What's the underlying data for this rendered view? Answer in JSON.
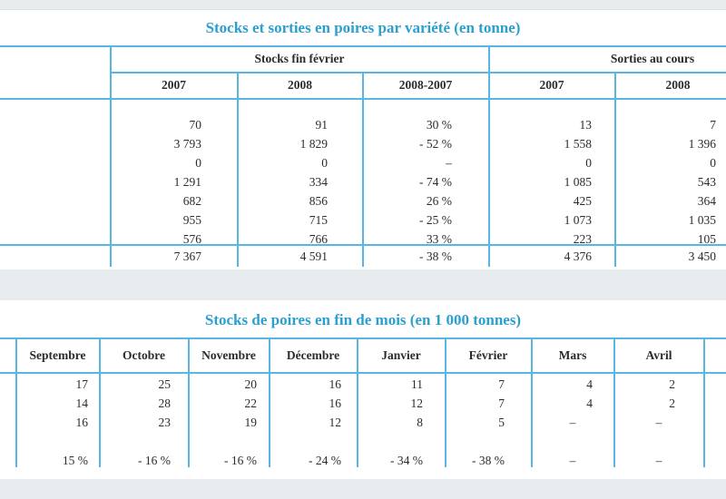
{
  "table1": {
    "title": "Stocks et sorties en poires par variété (en tonne)",
    "group_headers": [
      "Stocks fin février",
      "Sorties au cours"
    ],
    "year_headers": [
      "2007",
      "2008",
      "2008-2007",
      "2007",
      "2008"
    ],
    "rows": [
      [
        "70",
        "91",
        "30 %",
        "13",
        "7"
      ],
      [
        "3 793",
        "1 829",
        "- 52 %",
        "1 558",
        "1 396"
      ],
      [
        "0",
        "0",
        "–",
        "0",
        "0"
      ],
      [
        "1 291",
        "334",
        "- 74 %",
        "1 085",
        "543"
      ],
      [
        "682",
        "856",
        "26 %",
        "425",
        "364"
      ],
      [
        "955",
        "715",
        "- 25 %",
        "1 073",
        "1 035"
      ],
      [
        "576",
        "766",
        "33 %",
        "223",
        "105"
      ]
    ],
    "total": [
      "7 367",
      "4 591",
      "- 38 %",
      "4 376",
      "3 450"
    ]
  },
  "table2": {
    "title": "Stocks de poires en fin de mois (en 1 000 tonnes)",
    "months": [
      "Septembre",
      "Octobre",
      "Novembre",
      "Décembre",
      "Janvier",
      "Février",
      "Mars",
      "Avril"
    ],
    "rows": [
      [
        "17",
        "25",
        "20",
        "16",
        "11",
        "7",
        "4",
        "2"
      ],
      [
        "14",
        "28",
        "22",
        "16",
        "12",
        "7",
        "4",
        "2"
      ],
      [
        "16",
        "23",
        "19",
        "12",
        "8",
        "5",
        "–",
        "–"
      ]
    ],
    "variation": [
      "15 %",
      "- 16 %",
      "- 16 %",
      "- 24 %",
      "- 34 %",
      "- 38 %",
      "–",
      "–"
    ]
  }
}
